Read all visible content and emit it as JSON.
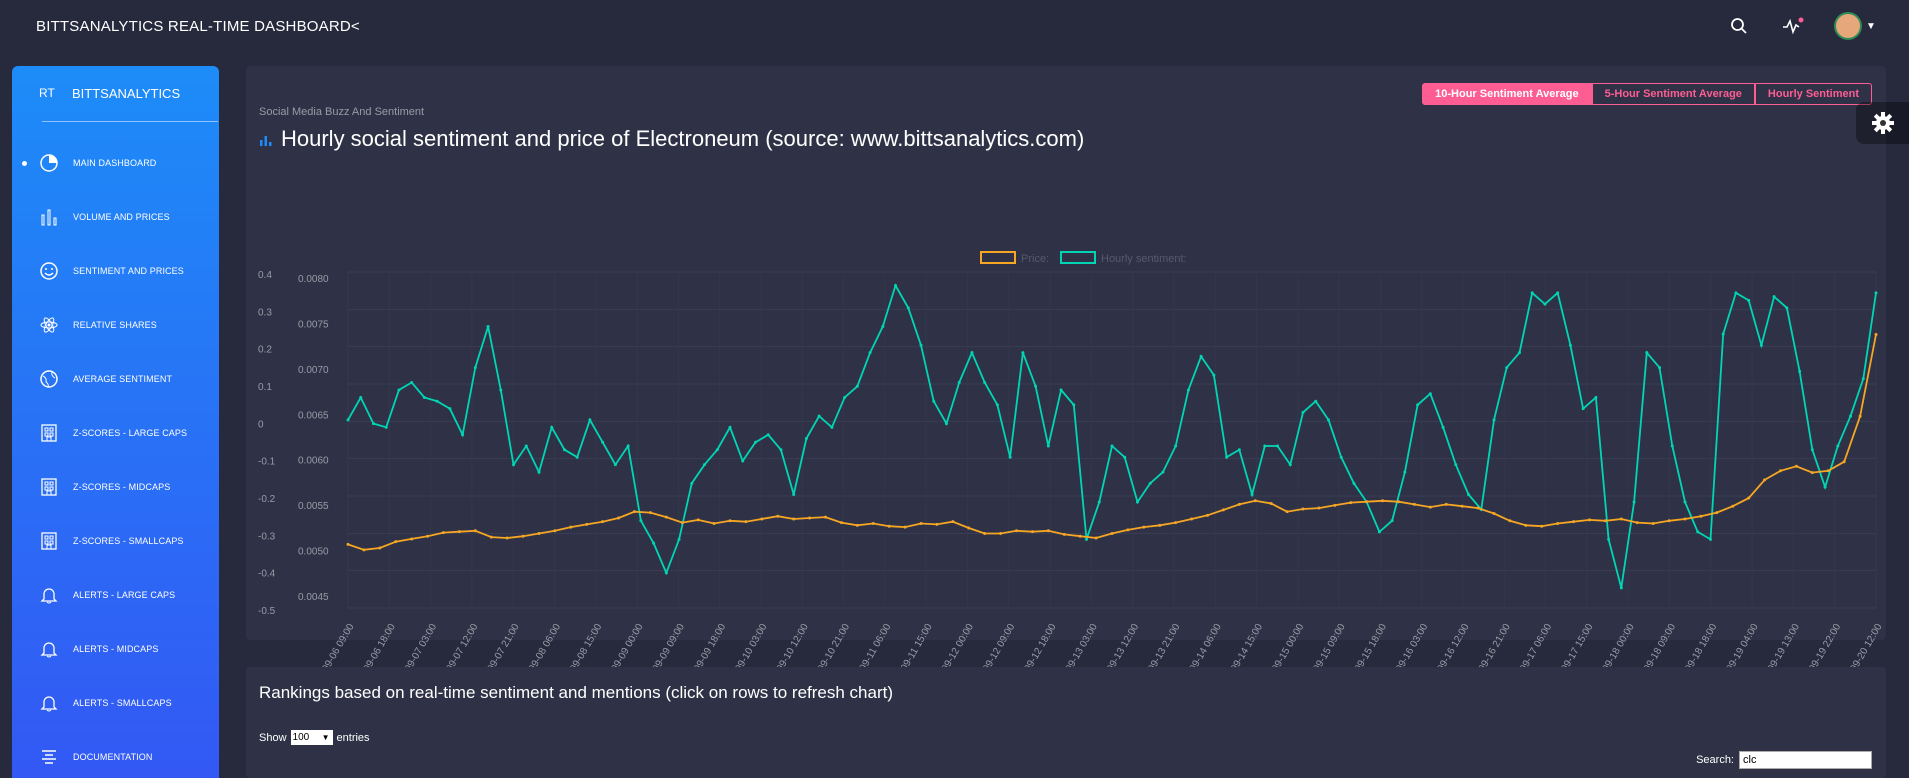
{
  "header": {
    "title": "BITTSANALYTICS REAL-TIME DASHBOARD"
  },
  "sidebar": {
    "logo_mini": "RT",
    "logo_full": "BITTSANALYTICS",
    "items": [
      {
        "label": "MAIN DASHBOARD",
        "icon": "pie-chart-icon",
        "active": true
      },
      {
        "label": "VOLUME AND PRICES",
        "icon": "bar-chart-icon"
      },
      {
        "label": "SENTIMENT AND PRICES",
        "icon": "smiley-icon"
      },
      {
        "label": "RELATIVE SHARES",
        "icon": "atom-icon"
      },
      {
        "label": "AVERAGE SENTIMENT",
        "icon": "globe-icon"
      },
      {
        "label": "Z-SCORES - LARGE CAPS",
        "icon": "building-icon"
      },
      {
        "label": "Z-SCORES - MIDCAPS",
        "icon": "building-icon"
      },
      {
        "label": "Z-SCORES - SMALLCAPS",
        "icon": "building-icon"
      },
      {
        "label": "ALERTS - LARGE CAPS",
        "icon": "bell-icon"
      },
      {
        "label": "ALERTS - MIDCAPS",
        "icon": "bell-icon"
      },
      {
        "label": "ALERTS - SMALLCAPS",
        "icon": "bell-icon"
      },
      {
        "label": "DOCUMENTATION",
        "icon": "align-icon"
      }
    ]
  },
  "chart_card": {
    "subtitle": "Social Media Buzz And Sentiment",
    "title": "Hourly social sentiment and price of Electroneum (source: www.bittsanalytics.com)",
    "buttons": [
      "10-Hour Sentiment Average",
      "5-Hour Sentiment Average",
      "Hourly Sentiment"
    ]
  },
  "chart_data": {
    "type": "line",
    "legend": [
      "Price:",
      "Hourly sentiment:"
    ],
    "legend_position": "top-center",
    "grid": true,
    "y_left_price_ticks": [
      "0.0080",
      "0.0075",
      "0.0070",
      "0.0065",
      "0.0060",
      "0.0055",
      "0.0050",
      "0.0045"
    ],
    "y_left_sentiment_ticks": [
      "0.4",
      "0.3",
      "0.2",
      "0.1",
      "0",
      "-0.1",
      "-0.2",
      "-0.3",
      "-0.4",
      "-0.5"
    ],
    "price_ylim": [
      0.0045,
      0.008
    ],
    "sentiment_ylim": [
      -0.5,
      0.4
    ],
    "x_ticks": [
      "09-06 09:00",
      "09-06 18:00",
      "09-07 03:00",
      "09-07 12:00",
      "09-07 21:00",
      "09-08 06:00",
      "09-08 15:00",
      "09-09 00:00",
      "09-09 09:00",
      "09-09 18:00",
      "09-10 03:00",
      "09-10 12:00",
      "09-10 21:00",
      "09-11 06:00",
      "09-11 15:00",
      "09-12 00:00",
      "09-12 09:00",
      "09-12 18:00",
      "09-13 03:00",
      "09-13 12:00",
      "09-13 21:00",
      "09-14 06:00",
      "09-14 15:00",
      "09-15 00:00",
      "09-15 09:00",
      "09-15 18:00",
      "09-16 03:00",
      "09-16 12:00",
      "09-16 21:00",
      "09-17 06:00",
      "09-17 15:00",
      "09-18 00:00",
      "09-18 09:00",
      "09-18 18:00",
      "09-19 04:00",
      "09-19 13:00",
      "09-19 22:00",
      "09-20 12:00"
    ],
    "series": [
      {
        "name": "Price:",
        "color": "#f5a623",
        "values": [
          0.00509,
          0.00503,
          0.00505,
          0.00512,
          0.00515,
          0.00518,
          0.00522,
          0.00523,
          0.00524,
          0.00517,
          0.00516,
          0.00518,
          0.00521,
          0.00524,
          0.00528,
          0.00531,
          0.00534,
          0.00538,
          0.00545,
          0.00544,
          0.00539,
          0.00533,
          0.00536,
          0.00532,
          0.00535,
          0.00534,
          0.00537,
          0.0054,
          0.00537,
          0.00538,
          0.00539,
          0.00533,
          0.0053,
          0.00532,
          0.00529,
          0.00528,
          0.00532,
          0.00531,
          0.00534,
          0.00527,
          0.00521,
          0.00521,
          0.00524,
          0.00523,
          0.00524,
          0.0052,
          0.00518,
          0.00516,
          0.00521,
          0.00525,
          0.00528,
          0.0053,
          0.00533,
          0.00537,
          0.00541,
          0.00547,
          0.00553,
          0.00557,
          0.00554,
          0.00545,
          0.00548,
          0.00549,
          0.00552,
          0.00555,
          0.00556,
          0.00557,
          0.00556,
          0.00553,
          0.0055,
          0.00553,
          0.00551,
          0.00549,
          0.00543,
          0.00535,
          0.0053,
          0.00529,
          0.00532,
          0.00534,
          0.00536,
          0.00535,
          0.00537,
          0.00533,
          0.00532,
          0.00535,
          0.00537,
          0.0054,
          0.00544,
          0.00551,
          0.0056,
          0.0058,
          0.0059,
          0.00595,
          0.00588,
          0.0059,
          0.006,
          0.0065,
          0.0074
        ]
      },
      {
        "name": "Hourly sentiment:",
        "color": "#00d6b4",
        "values": [
          0.02,
          0.08,
          0.01,
          0.0,
          0.1,
          0.12,
          0.08,
          0.07,
          0.05,
          -0.02,
          0.16,
          0.27,
          0.1,
          -0.1,
          -0.05,
          -0.12,
          0.0,
          -0.06,
          -0.08,
          0.02,
          -0.04,
          -0.1,
          -0.05,
          -0.25,
          -0.31,
          -0.39,
          -0.3,
          -0.15,
          -0.1,
          -0.06,
          0.0,
          -0.09,
          -0.04,
          -0.02,
          -0.06,
          -0.18,
          -0.03,
          0.03,
          0.0,
          0.08,
          0.11,
          0.2,
          0.27,
          0.38,
          0.32,
          0.22,
          0.07,
          0.01,
          0.12,
          0.2,
          0.12,
          0.06,
          -0.08,
          0.2,
          0.11,
          -0.05,
          0.1,
          0.06,
          -0.3,
          -0.2,
          -0.05,
          -0.08,
          -0.2,
          -0.15,
          -0.12,
          -0.05,
          0.1,
          0.19,
          0.14,
          -0.08,
          -0.06,
          -0.18,
          -0.05,
          -0.05,
          -0.1,
          0.04,
          0.07,
          0.02,
          -0.08,
          -0.15,
          -0.2,
          -0.28,
          -0.25,
          -0.12,
          0.06,
          0.09,
          0.0,
          -0.1,
          -0.18,
          -0.22,
          0.02,
          0.16,
          0.2,
          0.36,
          0.33,
          0.36,
          0.22,
          0.05,
          0.08,
          -0.3,
          -0.43,
          -0.2,
          0.2,
          0.16,
          -0.05,
          -0.2,
          -0.28,
          -0.3,
          0.25,
          0.36,
          0.34,
          0.22,
          0.35,
          0.32,
          0.15,
          -0.06,
          -0.16,
          -0.05,
          0.03,
          0.13,
          0.36
        ]
      }
    ]
  },
  "rank_card": {
    "title": "Rankings based on real-time sentiment and mentions (click on rows to refresh chart)",
    "show_label": "Show",
    "show_value": "100",
    "entries_label": "entries",
    "search_label": "Search:",
    "search_value": "clc"
  },
  "colors": {
    "accent_pink": "#fd5d93",
    "sidebar_top": "#1d8cf8",
    "sidebar_bottom": "#3358f4",
    "card_bg": "#2f3246",
    "page_bg": "#27293d"
  }
}
